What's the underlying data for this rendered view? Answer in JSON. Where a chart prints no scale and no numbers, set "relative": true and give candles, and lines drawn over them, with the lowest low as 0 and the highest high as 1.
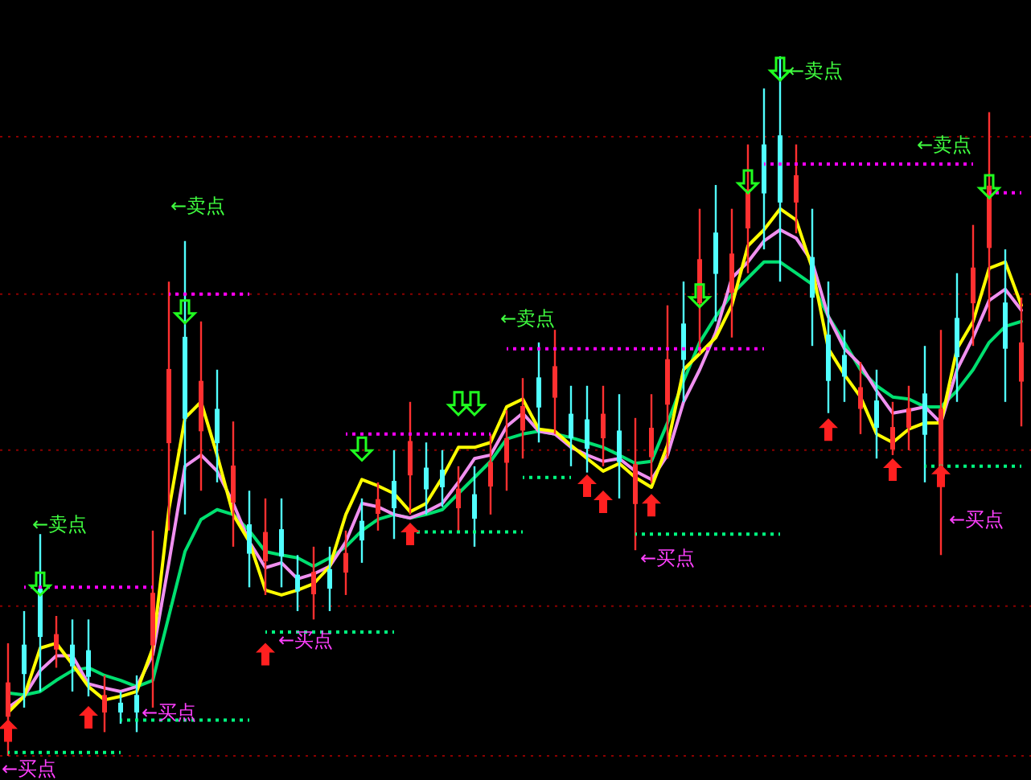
{
  "chart_data": {
    "type": "candlestick",
    "relative": true,
    "categories": [
      null,
      null,
      null,
      null,
      null,
      null,
      null,
      null,
      null,
      null,
      null,
      null,
      null,
      null,
      null,
      null,
      null,
      null,
      null,
      null,
      null,
      null,
      null,
      null,
      null,
      null,
      null,
      null,
      null,
      null,
      null,
      null,
      null,
      null,
      null,
      null,
      null,
      null,
      null,
      null,
      null,
      null,
      null,
      null,
      null,
      null,
      null,
      null,
      null,
      null,
      null,
      null,
      null,
      null,
      null,
      null,
      null,
      null,
      null,
      null,
      null,
      null,
      null,
      null
    ],
    "ohlc": [
      [
        0.056,
        0.161,
        0,
        0.105
      ],
      [
        0.159,
        0.207,
        0.069,
        0.117
      ],
      [
        0.239,
        0.317,
        0.092,
        0.17
      ],
      [
        0.152,
        0.2,
        0.126,
        0.174
      ],
      [
        0.159,
        0.195,
        0.092,
        0.128
      ],
      [
        0.151,
        0.195,
        0.085,
        0.113
      ],
      [
        0.062,
        0.115,
        0.034,
        0.087
      ],
      [
        0.076,
        0.092,
        0.046,
        0.062
      ],
      [
        0.087,
        0.115,
        0.034,
        0.062
      ],
      [
        0.158,
        0.322,
        0.069,
        0.233
      ],
      [
        0.447,
        0.678,
        0.322,
        0.553
      ],
      [
        0.599,
        0.736,
        0.345,
        0.482
      ],
      [
        0.464,
        0.621,
        0.379,
        0.536
      ],
      [
        0.496,
        0.552,
        0.391,
        0.447
      ],
      [
        0.362,
        0.478,
        0.299,
        0.415
      ],
      [
        0.331,
        0.379,
        0.241,
        0.289
      ],
      [
        0.278,
        0.368,
        0.23,
        0.32
      ],
      [
        0.324,
        0.368,
        0.241,
        0.285
      ],
      [
        0.259,
        0.287,
        0.207,
        0.235
      ],
      [
        0.231,
        0.299,
        0.195,
        0.263
      ],
      [
        0.267,
        0.299,
        0.207,
        0.239
      ],
      [
        0.262,
        0.322,
        0.23,
        0.29
      ],
      [
        0.336,
        0.368,
        0.276,
        0.308
      ],
      [
        0.346,
        0.391,
        0.322,
        0.367
      ],
      [
        0.393,
        0.437,
        0.31,
        0.354
      ],
      [
        0.401,
        0.506,
        0.345,
        0.45
      ],
      [
        0.412,
        0.448,
        0.345,
        0.381
      ],
      [
        0.409,
        0.437,
        0.356,
        0.384
      ],
      [
        0.354,
        0.414,
        0.322,
        0.382
      ],
      [
        0.374,
        0.414,
        0.299,
        0.339
      ],
      [
        0.385,
        0.46,
        0.345,
        0.42
      ],
      [
        0.419,
        0.494,
        0.379,
        0.454
      ],
      [
        0.465,
        0.54,
        0.425,
        0.5
      ],
      [
        0.541,
        0.591,
        0.448,
        0.498
      ],
      [
        0.512,
        0.609,
        0.46,
        0.557
      ],
      [
        0.489,
        0.529,
        0.414,
        0.454
      ],
      [
        0.481,
        0.529,
        0.405,
        0.439
      ],
      [
        0.454,
        0.529,
        0.414,
        0.489
      ],
      [
        0.465,
        0.517,
        0.368,
        0.42
      ],
      [
        0.36,
        0.483,
        0.294,
        0.417
      ],
      [
        0.427,
        0.517,
        0.39,
        0.469
      ],
      [
        0.502,
        0.644,
        0.425,
        0.567
      ],
      [
        0.618,
        0.678,
        0.506,
        0.566
      ],
      [
        0.647,
        0.782,
        0.575,
        0.71
      ],
      [
        0.748,
        0.816,
        0.621,
        0.689
      ],
      [
        0.662,
        0.782,
        0.598,
        0.718
      ],
      [
        0.754,
        0.874,
        0.69,
        0.81
      ],
      [
        0.874,
        0.954,
        0.724,
        0.804
      ],
      [
        0.887,
        1,
        0.678,
        0.791
      ],
      [
        0.791,
        0.874,
        0.747,
        0.83
      ],
      [
        0.713,
        0.782,
        0.586,
        0.655
      ],
      [
        0.602,
        0.678,
        0.49,
        0.536
      ],
      [
        0.573,
        0.609,
        0.506,
        0.542
      ],
      [
        0.496,
        0.563,
        0.46,
        0.527
      ],
      [
        0.508,
        0.552,
        0.425,
        0.469
      ],
      [
        0.438,
        0.506,
        0.43,
        0.47
      ],
      [
        0.469,
        0.529,
        0.437,
        0.497
      ],
      [
        0.518,
        0.586,
        0.391,
        0.459
      ],
      [
        0.4,
        0.609,
        0.287,
        0.496
      ],
      [
        0.626,
        0.69,
        0.506,
        0.57
      ],
      [
        0.647,
        0.759,
        0.586,
        0.698
      ],
      [
        0.726,
        0.92,
        0.621,
        0.815
      ],
      [
        0.648,
        0.724,
        0.506,
        0.582
      ],
      [
        0.535,
        0.655,
        0.471,
        0.591
      ]
    ],
    "colors": [
      "#ff3030",
      "#50ffff",
      "#50ffff",
      "#ff3030",
      "#50ffff",
      "#50ffff",
      "#ff3030",
      "#50ffff",
      "#50ffff",
      "#ff3030",
      "#ff3030",
      "#50ffff",
      "#ff3030",
      "#50ffff",
      "#ff3030",
      "#50ffff",
      "#ff3030",
      "#50ffff",
      "#50ffff",
      "#ff3030",
      "#50ffff",
      "#ff3030",
      "#50ffff",
      "#ff3030",
      "#50ffff",
      "#ff3030",
      "#50ffff",
      "#50ffff",
      "#ff3030",
      "#50ffff",
      "#ff3030",
      "#ff3030",
      "#ff3030",
      "#50ffff",
      "#ff3030",
      "#50ffff",
      "#50ffff",
      "#ff3030",
      "#50ffff",
      "#ff3030",
      "#ff3030",
      "#ff3030",
      "#50ffff",
      "#ff3030",
      "#50ffff",
      "#ff3030",
      "#ff3030",
      "#50ffff",
      "#50ffff",
      "#ff3030",
      "#50ffff",
      "#50ffff",
      "#50ffff",
      "#ff3030",
      "#50ffff",
      "#ff3030",
      "#ff3030",
      "#50ffff",
      "#ff3030",
      "#50ffff",
      "#ff3030",
      "#ff3030",
      "#50ffff",
      "#ff3030"
    ],
    "series": [
      {
        "type": "line",
        "color": "#00e070",
        "values": [
          0.09,
          0.087,
          0.092,
          0.108,
          0.122,
          0.126,
          0.115,
          0.108,
          0.099,
          0.108,
          0.2,
          0.292,
          0.338,
          0.352,
          0.345,
          0.322,
          0.292,
          0.287,
          0.283,
          0.271,
          0.283,
          0.299,
          0.322,
          0.338,
          0.345,
          0.34,
          0.345,
          0.352,
          0.375,
          0.398,
          0.421,
          0.453,
          0.46,
          0.464,
          0.46,
          0.455,
          0.448,
          0.441,
          0.43,
          0.418,
          0.421,
          0.476,
          0.536,
          0.591,
          0.628,
          0.66,
          0.683,
          0.706,
          0.706,
          0.69,
          0.674,
          0.628,
          0.591,
          0.552,
          0.529,
          0.513,
          0.51,
          0.499,
          0.499,
          0.522,
          0.552,
          0.591,
          0.614,
          0.621
        ]
      },
      {
        "type": "line",
        "color": "#f090f0",
        "values": [
          0.069,
          0.085,
          0.122,
          0.143,
          0.143,
          0.103,
          0.097,
          0.092,
          0.099,
          0.145,
          0.276,
          0.414,
          0.43,
          0.407,
          0.361,
          0.306,
          0.269,
          0.276,
          0.253,
          0.26,
          0.271,
          0.306,
          0.361,
          0.356,
          0.345,
          0.34,
          0.349,
          0.361,
          0.391,
          0.425,
          0.43,
          0.471,
          0.49,
          0.464,
          0.46,
          0.441,
          0.43,
          0.421,
          0.425,
          0.407,
          0.395,
          0.43,
          0.506,
          0.552,
          0.605,
          0.683,
          0.706,
          0.736,
          0.752,
          0.74,
          0.706,
          0.628,
          0.582,
          0.559,
          0.522,
          0.49,
          0.494,
          0.499,
          0.476,
          0.552,
          0.598,
          0.651,
          0.667,
          0.637
        ]
      },
      {
        "type": "line",
        "color": "#ffff00",
        "values": [
          0.062,
          0.085,
          0.154,
          0.161,
          0.131,
          0.099,
          0.08,
          0.085,
          0.092,
          0.154,
          0.352,
          0.483,
          0.506,
          0.43,
          0.345,
          0.306,
          0.237,
          0.23,
          0.237,
          0.246,
          0.271,
          0.345,
          0.395,
          0.386,
          0.375,
          0.349,
          0.361,
          0.398,
          0.441,
          0.441,
          0.448,
          0.499,
          0.51,
          0.467,
          0.464,
          0.444,
          0.425,
          0.407,
          0.418,
          0.398,
          0.384,
          0.444,
          0.552,
          0.575,
          0.598,
          0.644,
          0.729,
          0.752,
          0.782,
          0.766,
          0.697,
          0.582,
          0.545,
          0.513,
          0.46,
          0.448,
          0.467,
          0.476,
          0.476,
          0.582,
          0.621,
          0.697,
          0.706,
          0.644
        ]
      },
      {
        "type": "line",
        "color": "#ff00ff",
        "line_style": "dotted",
        "values": [
          null,
          0.241,
          0.241,
          0.241,
          0.241,
          0.241,
          0.241,
          0.241,
          0.241,
          0.241,
          null,
          null,
          null,
          null,
          null,
          null,
          null,
          null,
          null,
          null,
          null,
          null,
          null,
          null,
          null,
          null,
          null,
          null,
          null,
          null,
          null,
          null,
          null,
          null,
          null,
          null,
          null,
          null,
          null,
          null,
          null,
          null,
          null,
          null,
          null,
          null,
          null,
          null,
          null,
          null,
          null,
          null,
          null,
          null,
          null,
          null,
          null,
          null,
          null,
          null,
          null,
          null,
          null,
          null
        ]
      },
      {
        "type": "line",
        "color": "#00ff80",
        "line_style": "dotted",
        "values": [
          0.005,
          0.005,
          0.005,
          0.005,
          0.005,
          0.005,
          0.005,
          0.005,
          null,
          null,
          null,
          null,
          null,
          null,
          null,
          null,
          null,
          null,
          null,
          null,
          null,
          null,
          null,
          null,
          null,
          null,
          null,
          null,
          null,
          null,
          null,
          null,
          null,
          null,
          null,
          null,
          null,
          null,
          null,
          null,
          null,
          null,
          null,
          null,
          null,
          null,
          null,
          null,
          null,
          null,
          null,
          null,
          null,
          null,
          null,
          null,
          null,
          null,
          null,
          null,
          null,
          null,
          null,
          null
        ]
      },
      {
        "type": "line",
        "color": "#ff00ff",
        "line_style": "dotted",
        "values": [
          null,
          null,
          null,
          null,
          null,
          null,
          null,
          null,
          null,
          null,
          0.66,
          0.66,
          0.66,
          0.66,
          0.66,
          0.66,
          null,
          null,
          null,
          null,
          null,
          null,
          null,
          null,
          null,
          null,
          null,
          null,
          null,
          null,
          null,
          null,
          null,
          null,
          null,
          null,
          null,
          null,
          null,
          null,
          null,
          null,
          null,
          null,
          null,
          null,
          null,
          null,
          null,
          null,
          null,
          null,
          null,
          null,
          null,
          null,
          null,
          null,
          null,
          null,
          null,
          null,
          null,
          null
        ]
      },
      {
        "type": "line",
        "color": "#00ff80",
        "line_style": "dotted",
        "values": [
          null,
          null,
          null,
          null,
          null,
          null,
          null,
          0.051,
          0.051,
          0.051,
          0.051,
          0.051,
          0.051,
          0.051,
          0.051,
          0.051,
          null,
          null,
          null,
          null,
          null,
          null,
          null,
          null,
          null,
          null,
          null,
          null,
          null,
          null,
          null,
          null,
          null,
          null,
          null,
          null,
          null,
          null,
          null,
          null,
          null,
          null,
          null,
          null,
          null,
          null,
          null,
          null,
          null,
          null,
          null,
          null,
          null,
          null,
          null,
          null,
          null,
          null,
          null,
          null,
          null,
          null,
          null,
          null
        ]
      },
      {
        "type": "line",
        "color": "#00ff80",
        "line_style": "dotted",
        "values": [
          null,
          null,
          null,
          null,
          null,
          null,
          null,
          null,
          null,
          null,
          null,
          null,
          null,
          null,
          null,
          null,
          0.177,
          0.177,
          0.177,
          0.177,
          0.177,
          0.177,
          0.177,
          0.177,
          0.177,
          null,
          null,
          null,
          null,
          null,
          null,
          null,
          null,
          null,
          null,
          null,
          null,
          null,
          null,
          null,
          null,
          null,
          null,
          null,
          null,
          null,
          null,
          null,
          null,
          null,
          null,
          null,
          null,
          null,
          null,
          null,
          null,
          null,
          null,
          null,
          null,
          null,
          null,
          null
        ]
      },
      {
        "type": "line",
        "color": "#ff00ff",
        "line_style": "dotted",
        "values": [
          null,
          null,
          null,
          null,
          null,
          null,
          null,
          null,
          null,
          null,
          null,
          null,
          null,
          null,
          null,
          null,
          null,
          null,
          null,
          null,
          null,
          0.46,
          0.46,
          0.46,
          0.46,
          0.46,
          0.46,
          0.46,
          0.46,
          0.46,
          0.46,
          null,
          null,
          null,
          null,
          null,
          null,
          null,
          null,
          null,
          null,
          null,
          null,
          null,
          null,
          null,
          null,
          null,
          null,
          null,
          null,
          null,
          null,
          null,
          null,
          null,
          null,
          null,
          null,
          null,
          null,
          null,
          null,
          null
        ]
      },
      {
        "type": "line",
        "color": "#00ff80",
        "line_style": "dotted",
        "values": [
          null,
          null,
          null,
          null,
          null,
          null,
          null,
          null,
          null,
          null,
          null,
          null,
          null,
          null,
          null,
          null,
          null,
          null,
          null,
          null,
          null,
          null,
          null,
          null,
          null,
          0.32,
          0.32,
          0.32,
          0.32,
          0.32,
          0.32,
          0.32,
          0.32,
          null,
          null,
          null,
          null,
          null,
          null,
          null,
          null,
          null,
          null,
          null,
          null,
          null,
          null,
          null,
          null,
          null,
          null,
          null,
          null,
          null,
          null,
          null,
          null,
          null,
          null,
          null,
          null,
          null,
          null,
          null
        ]
      },
      {
        "type": "line",
        "color": "#ff00ff",
        "line_style": "dotted",
        "values": [
          null,
          null,
          null,
          null,
          null,
          null,
          null,
          null,
          null,
          null,
          null,
          null,
          null,
          null,
          null,
          null,
          null,
          null,
          null,
          null,
          null,
          null,
          null,
          null,
          null,
          null,
          null,
          null,
          null,
          null,
          null,
          0.582,
          0.582,
          0.582,
          0.582,
          0.582,
          0.582,
          0.582,
          0.582,
          0.582,
          0.582,
          0.582,
          0.582,
          0.582,
          0.582,
          0.582,
          0.582,
          0.582,
          null,
          null,
          null,
          null,
          null,
          null,
          null,
          null,
          null,
          null,
          null,
          null,
          null,
          null,
          null,
          null
        ]
      },
      {
        "type": "line",
        "color": "#00ff80",
        "line_style": "dotted",
        "values": [
          null,
          null,
          null,
          null,
          null,
          null,
          null,
          null,
          null,
          null,
          null,
          null,
          null,
          null,
          null,
          null,
          null,
          null,
          null,
          null,
          null,
          null,
          null,
          null,
          null,
          null,
          null,
          null,
          null,
          null,
          null,
          null,
          0.398,
          0.398,
          0.398,
          0.398,
          null,
          null,
          null,
          null,
          null,
          null,
          null,
          null,
          null,
          null,
          null,
          null,
          null,
          null,
          null,
          null,
          null,
          null,
          null,
          null,
          null,
          null,
          null,
          null,
          null,
          null,
          null,
          null
        ]
      },
      {
        "type": "line",
        "color": "#00ff80",
        "line_style": "dotted",
        "values": [
          null,
          null,
          null,
          null,
          null,
          null,
          null,
          null,
          null,
          null,
          null,
          null,
          null,
          null,
          null,
          null,
          null,
          null,
          null,
          null,
          null,
          null,
          null,
          null,
          null,
          null,
          null,
          null,
          null,
          null,
          null,
          null,
          null,
          null,
          null,
          null,
          null,
          null,
          null,
          0.317,
          0.317,
          0.317,
          0.317,
          0.317,
          0.317,
          0.317,
          0.317,
          0.317,
          0.317,
          null,
          null,
          null,
          null,
          null,
          null,
          null,
          null,
          null,
          null,
          null,
          null,
          null,
          null,
          null
        ]
      },
      {
        "type": "line",
        "color": "#ff00ff",
        "line_style": "dotted",
        "values": [
          null,
          null,
          null,
          null,
          null,
          null,
          null,
          null,
          null,
          null,
          null,
          null,
          null,
          null,
          null,
          null,
          null,
          null,
          null,
          null,
          null,
          null,
          null,
          null,
          null,
          null,
          null,
          null,
          null,
          null,
          null,
          null,
          null,
          null,
          null,
          null,
          null,
          null,
          null,
          null,
          null,
          null,
          null,
          null,
          null,
          null,
          null,
          0.846,
          0.846,
          0.846,
          0.846,
          0.846,
          0.846,
          0.846,
          0.846,
          0.846,
          0.846,
          0.846,
          0.846,
          0.846,
          0.846,
          null,
          null,
          null
        ]
      },
      {
        "type": "line",
        "color": "#00ff80",
        "line_style": "dotted",
        "values": [
          null,
          null,
          null,
          null,
          null,
          null,
          null,
          null,
          null,
          null,
          null,
          null,
          null,
          null,
          null,
          null,
          null,
          null,
          null,
          null,
          null,
          null,
          null,
          null,
          null,
          null,
          null,
          null,
          null,
          null,
          null,
          null,
          null,
          null,
          null,
          null,
          null,
          null,
          null,
          null,
          null,
          null,
          null,
          null,
          null,
          null,
          null,
          null,
          null,
          null,
          null,
          null,
          null,
          null,
          null,
          null,
          null,
          0.414,
          0.414,
          0.414,
          0.414,
          0.414,
          0.414,
          0.414
        ]
      },
      {
        "type": "line",
        "color": "#ff00ff",
        "line_style": "dotted",
        "values": [
          null,
          null,
          null,
          null,
          null,
          null,
          null,
          null,
          null,
          null,
          null,
          null,
          null,
          null,
          null,
          null,
          null,
          null,
          null,
          null,
          null,
          null,
          null,
          null,
          null,
          null,
          null,
          null,
          null,
          null,
          null,
          null,
          null,
          null,
          null,
          null,
          null,
          null,
          null,
          null,
          null,
          null,
          null,
          null,
          null,
          null,
          null,
          null,
          null,
          null,
          null,
          null,
          null,
          null,
          null,
          null,
          null,
          null,
          null,
          null,
          null,
          0.805,
          0.805,
          0.805
        ]
      },
      {
        "type": "scatter",
        "color": "#ff2020",
        "marker": "triangle",
        "values": [
          0.034,
          null,
          null,
          null,
          null,
          0.053,
          null,
          null,
          null,
          null,
          null,
          null,
          null,
          null,
          null,
          null,
          0.143,
          null,
          null,
          null,
          null,
          null,
          null,
          null,
          null,
          0.315,
          null,
          null,
          null,
          null,
          null,
          null,
          null,
          null,
          null,
          null,
          0.384,
          0.361,
          null,
          null,
          0.356,
          null,
          null,
          null,
          null,
          null,
          null,
          null,
          null,
          null,
          null,
          0.464,
          null,
          null,
          null,
          0.407,
          null,
          null,
          0.398,
          null,
          null,
          null,
          null,
          null
        ]
      },
      {
        "type": "scatter",
        "color": "#20ff20",
        "marker": "triangle-down",
        "values": [
          null,
          null,
          0.248,
          null,
          null,
          null,
          null,
          null,
          null,
          null,
          null,
          0.637,
          null,
          null,
          null,
          null,
          null,
          null,
          null,
          null,
          null,
          null,
          0.441,
          null,
          null,
          null,
          null,
          null,
          0.506,
          0.506,
          null,
          null,
          null,
          null,
          null,
          null,
          null,
          null,
          null,
          null,
          null,
          null,
          null,
          0.66,
          null,
          null,
          0.823,
          null,
          0.984,
          null,
          null,
          null,
          null,
          null,
          null,
          null,
          null,
          null,
          null,
          null,
          null,
          0.816,
          null,
          null
        ]
      }
    ],
    "ref_lines": [
      {
        "axis": "y",
        "value": 0.885,
        "color": "#8b0000",
        "line_style": "dotted"
      },
      {
        "axis": "y",
        "value": 0.66,
        "color": "#8b0000",
        "line_style": "dotted"
      },
      {
        "axis": "y",
        "value": 0.437,
        "color": "#8b0000",
        "line_style": "dotted"
      },
      {
        "axis": "y",
        "value": 0.214,
        "color": "#8b0000",
        "line_style": "dotted"
      },
      {
        "axis": "y",
        "value": 0,
        "color": "#8b0000",
        "line_style": "dotted"
      }
    ],
    "annotations": [
      "←卖点",
      "←卖点",
      "←卖点",
      "←卖点",
      "←卖点",
      "←买点",
      "←买点",
      "←买点",
      "←买点",
      "←买点"
    ]
  }
}
